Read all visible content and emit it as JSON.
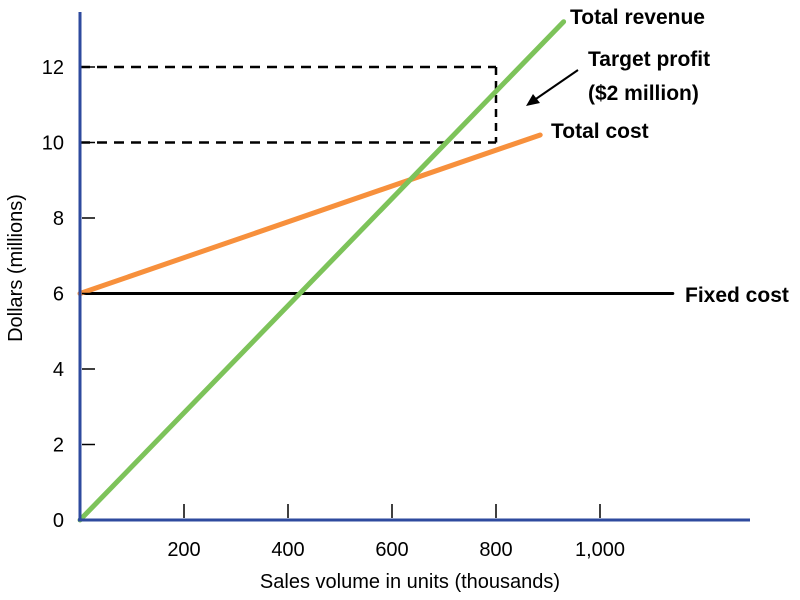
{
  "chart_data": {
    "type": "line",
    "xlabel": "Sales volume in units (thousands)",
    "ylabel": "Dollars (millions)",
    "xlim": [
      0,
      1280
    ],
    "ylim": [
      0,
      13
    ],
    "x_ticks": [
      {
        "value": 200,
        "label": "200"
      },
      {
        "value": 400,
        "label": "400"
      },
      {
        "value": 600,
        "label": "600"
      },
      {
        "value": 800,
        "label": "800"
      },
      {
        "value": 1000,
        "label": "1,000"
      }
    ],
    "y_ticks": [
      {
        "value": 0,
        "label": "0"
      },
      {
        "value": 2,
        "label": "2"
      },
      {
        "value": 4,
        "label": "4"
      },
      {
        "value": 6,
        "label": "6"
      },
      {
        "value": 8,
        "label": "8"
      },
      {
        "value": 10,
        "label": "10"
      },
      {
        "value": 12,
        "label": "12"
      }
    ],
    "grid": false,
    "series": [
      {
        "name": "Total revenue",
        "color": "#7dc35a",
        "x": [
          0,
          930
        ],
        "y": [
          0,
          13.2
        ]
      },
      {
        "name": "Total cost",
        "color": "#f7903c",
        "x": [
          0,
          885
        ],
        "y": [
          6,
          10.2
        ]
      },
      {
        "name": "Fixed cost",
        "color": "#000000",
        "x": [
          0,
          1140
        ],
        "y": [
          6,
          6
        ]
      }
    ],
    "annotations": [
      {
        "text_lines": [
          "Target profit",
          "($2 million)"
        ],
        "x": 800,
        "y_from": 10,
        "y_to": 12
      }
    ],
    "reference_lines": [
      {
        "x": [
          0,
          800
        ],
        "y": 12
      },
      {
        "x": [
          0,
          800
        ],
        "y": 10
      }
    ]
  }
}
